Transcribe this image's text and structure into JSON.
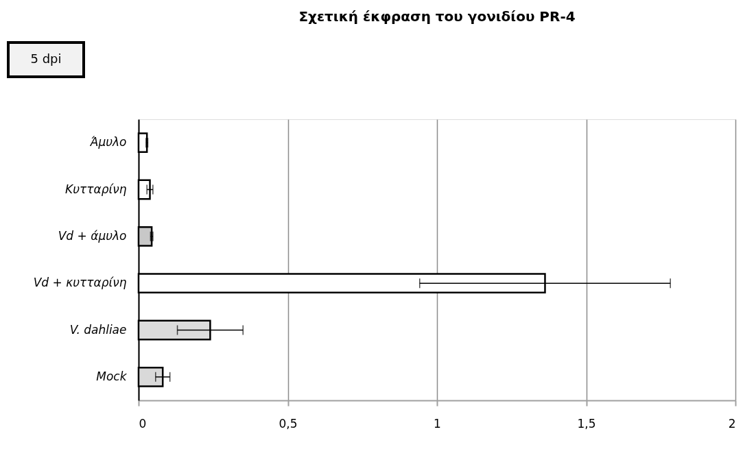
{
  "chart_data": {
    "type": "bar",
    "orientation": "horizontal",
    "title": "Σχετική έκφραση του γονιδίου PR-4",
    "categories": [
      "Άμυλο",
      "Κυτταρίνη",
      "Vd + άμυλο",
      "Vd + κυτταρίνη",
      "V. dahliae",
      "Mock"
    ],
    "values": [
      0.028,
      0.038,
      0.044,
      1.362,
      0.24,
      0.081
    ],
    "errors": [
      0.003,
      0.01,
      0.004,
      0.42,
      0.11,
      0.024
    ],
    "colors": [
      "#ffffff",
      "#ffffff",
      "#c8c8c8",
      "#ffffff",
      "#dcdcdc",
      "#d9d9d9"
    ],
    "xlim": [
      0,
      2
    ],
    "xticks": [
      0,
      {
        "value": 0.5,
        "label": "0,5"
      },
      1,
      {
        "value": 1.5,
        "label": "1,5"
      },
      2
    ],
    "grid": "x",
    "annotations": [
      "5 dpi"
    ]
  }
}
